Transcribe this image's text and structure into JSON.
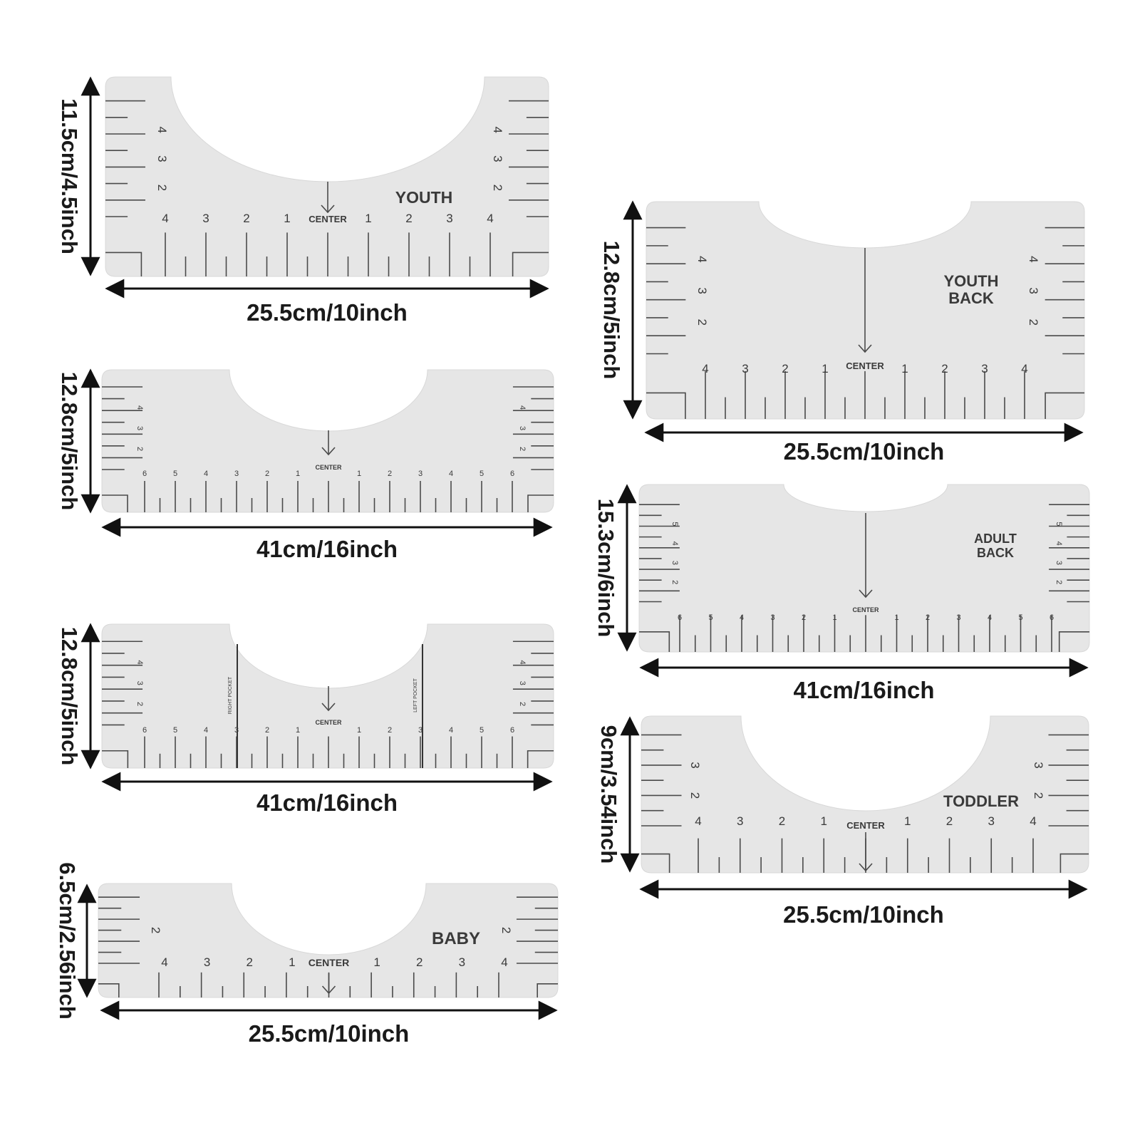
{
  "colors": {
    "background": "#ffffff",
    "ruler_fill": "#e6e6e6",
    "ruler_marks": "#4a4a4a",
    "dimension_arrows": "#111111",
    "text": "#222222"
  },
  "center_label": "CENTER",
  "rulers": [
    {
      "id": "youth",
      "label_lines": [
        "YOUTH"
      ],
      "height_label": "11.5cm/4.5inch",
      "width_label": "25.5cm/10inch",
      "bottom_numbers": [
        "4",
        "3",
        "2",
        "1",
        "1",
        "2",
        "3",
        "4"
      ],
      "side_numbers": [
        "4",
        "3",
        "2"
      ],
      "pocket_labels": []
    },
    {
      "id": "adult",
      "label_lines": [],
      "height_label": "12.8cm/5inch",
      "width_label": "41cm/16inch",
      "bottom_numbers": [
        "6",
        "5",
        "4",
        "3",
        "2",
        "1",
        "1",
        "2",
        "3",
        "4",
        "5",
        "6"
      ],
      "side_numbers": [
        "4",
        "3",
        "2"
      ],
      "pocket_labels": []
    },
    {
      "id": "adult-pocket",
      "label_lines": [],
      "height_label": "12.8cm/5inch",
      "width_label": "41cm/16inch",
      "bottom_numbers": [
        "6",
        "5",
        "4",
        "3",
        "2",
        "1",
        "1",
        "2",
        "3",
        "4",
        "5",
        "6"
      ],
      "side_numbers": [
        "4",
        "3",
        "2"
      ],
      "pocket_labels": [
        "RIGHT POCKET",
        "LEFT POCKET"
      ]
    },
    {
      "id": "baby",
      "label_lines": [
        "BABY"
      ],
      "height_label": "6.5cm/2.56inch",
      "width_label": "25.5cm/10inch",
      "bottom_numbers": [
        "4",
        "3",
        "2",
        "1",
        "1",
        "2",
        "3",
        "4"
      ],
      "side_numbers": [
        "2"
      ],
      "pocket_labels": []
    },
    {
      "id": "youth-back",
      "label_lines": [
        "YOUTH",
        "BACK"
      ],
      "height_label": "12.8cm/5inch",
      "width_label": "25.5cm/10inch",
      "bottom_numbers": [
        "4",
        "3",
        "2",
        "1",
        "1",
        "2",
        "3",
        "4"
      ],
      "side_numbers": [
        "4",
        "3",
        "2"
      ],
      "pocket_labels": []
    },
    {
      "id": "adult-back",
      "label_lines": [
        "ADULT",
        "BACK"
      ],
      "height_label": "15.3cm/6inch",
      "width_label": "41cm/16inch",
      "bottom_numbers": [
        "6",
        "5",
        "4",
        "3",
        "2",
        "1",
        "1",
        "2",
        "3",
        "4",
        "5",
        "6"
      ],
      "side_numbers": [
        "5",
        "4",
        "3",
        "2"
      ],
      "pocket_labels": []
    },
    {
      "id": "toddler",
      "label_lines": [
        "TODDLER"
      ],
      "height_label": "9cm/3.54inch",
      "width_label": "25.5cm/10inch",
      "bottom_numbers": [
        "4",
        "3",
        "2",
        "1",
        "1",
        "2",
        "3",
        "4"
      ],
      "side_numbers": [
        "3",
        "2"
      ],
      "pocket_labels": []
    }
  ]
}
